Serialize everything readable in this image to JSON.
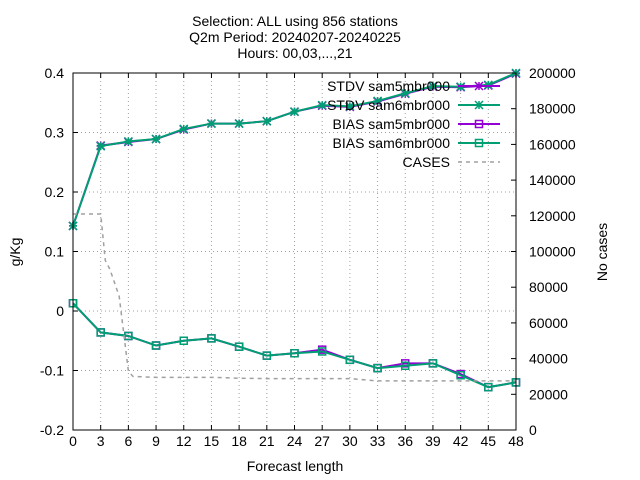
{
  "chart_data": {
    "type": "line",
    "title_lines": [
      "Selection: ALL using   856 stations",
      "Q2m   Period: 20240207-20240225",
      "Hours: 00,03,...,21"
    ],
    "xlabel": "Forecast length",
    "ylabel": "g/Kg",
    "y2label": "No cases",
    "x": [
      0,
      3,
      6,
      9,
      12,
      15,
      18,
      21,
      24,
      27,
      30,
      33,
      36,
      39,
      42,
      45,
      48
    ],
    "xlim": [
      0,
      48
    ],
    "ylim": [
      -0.2,
      0.4
    ],
    "y2lim": [
      0,
      200000
    ],
    "x_ticks": [
      "0",
      "3",
      "6",
      "9",
      "12",
      "15",
      "18",
      "21",
      "24",
      "27",
      "30",
      "33",
      "36",
      "39",
      "42",
      "45",
      "48"
    ],
    "y_ticks": [
      "-0.2",
      "-0.1",
      "0",
      "0.1",
      "0.2",
      "0.3",
      "0.4"
    ],
    "y2_ticks": [
      "0",
      "20000",
      "40000",
      "60000",
      "80000",
      "100000",
      "120000",
      "140000",
      "160000",
      "180000",
      "200000"
    ],
    "grid": true,
    "legend_position": "top-right",
    "series": [
      {
        "name": "STDV sam5mbr000",
        "axis": "y",
        "color": "#9400d3",
        "marker": "star",
        "values": [
          0.143,
          0.278,
          0.284,
          0.289,
          0.305,
          0.315,
          0.315,
          0.319,
          0.335,
          0.345,
          0.343,
          0.352,
          0.365,
          0.377,
          0.376,
          0.379,
          0.399
        ]
      },
      {
        "name": "STDV sam6mbr000",
        "axis": "y",
        "color": "#009e73",
        "marker": "star",
        "values": [
          0.143,
          0.277,
          0.285,
          0.289,
          0.306,
          0.315,
          0.315,
          0.319,
          0.335,
          0.346,
          0.344,
          0.353,
          0.366,
          0.378,
          0.377,
          0.38,
          0.4
        ]
      },
      {
        "name": "BIAS sam5mbr000",
        "axis": "y",
        "color": "#9400d3",
        "marker": "square",
        "values": [
          0.013,
          -0.036,
          -0.042,
          -0.058,
          -0.05,
          -0.046,
          -0.06,
          -0.075,
          -0.071,
          -0.065,
          -0.082,
          -0.096,
          -0.088,
          -0.088,
          -0.106,
          -0.128,
          -0.12
        ]
      },
      {
        "name": "BIAS sam6mbr000",
        "axis": "y",
        "color": "#009e73",
        "marker": "square",
        "values": [
          0.013,
          -0.036,
          -0.042,
          -0.058,
          -0.05,
          -0.046,
          -0.06,
          -0.075,
          -0.071,
          -0.068,
          -0.082,
          -0.096,
          -0.092,
          -0.088,
          -0.108,
          -0.128,
          -0.12
        ]
      },
      {
        "name": "CASES",
        "axis": "y2",
        "color": "#a0a0a0",
        "marker": "none",
        "dashed": true,
        "x": [
          0,
          1,
          2,
          3,
          3.5,
          4,
          5,
          6,
          6.5,
          9,
          12,
          15,
          18,
          21,
          24,
          27,
          30,
          33,
          36,
          39,
          42,
          45,
          48
        ],
        "values": [
          121000,
          121000,
          121000,
          121000,
          95000,
          90000,
          75000,
          33000,
          30000,
          29500,
          29500,
          29500,
          29000,
          28800,
          28800,
          28800,
          28800,
          27500,
          27500,
          27500,
          27500,
          27500,
          27500
        ]
      }
    ]
  }
}
